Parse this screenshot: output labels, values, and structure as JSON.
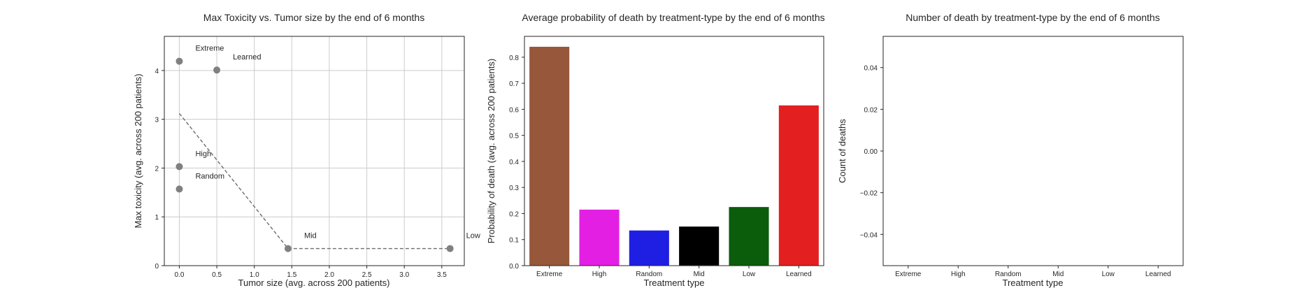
{
  "chart_data": [
    {
      "type": "scatter",
      "title": "Max Toxicity vs. Tumor size by the end of 6 months",
      "xlabel": "Tumor size (avg. across 200 patients)",
      "ylabel": "Max toxicity (avg. across 200 patients)",
      "xlim": [
        -0.2,
        3.8
      ],
      "ylim": [
        0,
        4.7
      ],
      "xticks": [
        "0.0",
        "0.5",
        "1.0",
        "1.5",
        "2.0",
        "2.5",
        "3.0",
        "3.5"
      ],
      "yticks": [
        "0",
        "1",
        "2",
        "3",
        "4"
      ],
      "grid": true,
      "points": [
        {
          "label": "Extreme",
          "x": 0.0,
          "y": 4.19
        },
        {
          "label": "Learned",
          "x": 0.5,
          "y": 4.01
        },
        {
          "label": "High",
          "x": 0.0,
          "y": 2.03
        },
        {
          "label": "Random",
          "x": 0.0,
          "y": 1.57
        },
        {
          "label": "Mid",
          "x": 1.45,
          "y": 0.35
        },
        {
          "label": "Low",
          "x": 3.61,
          "y": 0.35
        }
      ],
      "frontier_line": {
        "x": [
          0.0,
          1.45,
          3.61
        ],
        "y": [
          3.12,
          0.35,
          0.35
        ]
      },
      "point_color": "#808080"
    },
    {
      "type": "bar",
      "title": "Average probability of death by treatment-type by the end of 6 months",
      "xlabel": "Treatment type",
      "ylabel": "Probability of death (avg. across 200 patients)",
      "categories": [
        "Extreme",
        "High",
        "Random",
        "Mid",
        "Low",
        "Learned"
      ],
      "values": [
        0.84,
        0.215,
        0.135,
        0.15,
        0.225,
        0.615
      ],
      "colors": [
        "#96573a",
        "#e31fe3",
        "#1f1fe3",
        "#000000",
        "#0b5c0b",
        "#e31f1f"
      ],
      "ylim": [
        0,
        0.88
      ],
      "yticks": [
        "0.0",
        "0.1",
        "0.2",
        "0.3",
        "0.4",
        "0.5",
        "0.6",
        "0.7",
        "0.8"
      ],
      "grid": false
    },
    {
      "type": "bar",
      "title": "Number of death by treatment-type by the end of 6 months",
      "xlabel": "Treatment type",
      "ylabel": "Count of deaths",
      "categories": [
        "Extreme",
        "High",
        "Random",
        "Mid",
        "Low",
        "Learned"
      ],
      "values": [
        0,
        0,
        0,
        0,
        0,
        0
      ],
      "ylim": [
        -0.055,
        0.055
      ],
      "yticks": [
        "0.04",
        "0.02",
        "0.00",
        "−0.02",
        "−0.04"
      ],
      "grid": false
    }
  ]
}
